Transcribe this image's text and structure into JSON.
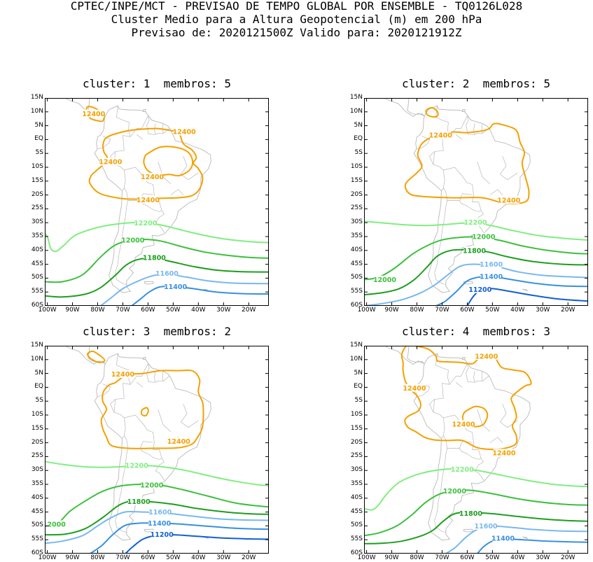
{
  "header": {
    "line1": "CPTEC/INPE/MCT - PREVISAO DE TEMPO GLOBAL POR ENSEMBLE - TQ0126L028",
    "line2": "Cluster Medio para a Altura Geopotencial (m) em 200 hPa",
    "line3": "Previsao de: 2020121500Z   Valido para: 2020121912Z"
  },
  "colors": {
    "c12400": "#f5a000",
    "c12200": "#80ee80",
    "c12000": "#3cc03c",
    "c11800": "#1e9e1e",
    "c11600": "#78b8f0",
    "c11400": "#3890e0",
    "c11200": "#1060d0",
    "land": "#b8b8b8"
  },
  "axes": {
    "lat_labels": [
      "15N",
      "10N",
      "5N",
      "EQ",
      "5S",
      "10S",
      "15S",
      "20S",
      "25S",
      "30S",
      "35S",
      "40S",
      "45S",
      "50S",
      "55S",
      "60S"
    ],
    "lon_labels": [
      "100W",
      "90W",
      "80W",
      "70W",
      "60W",
      "50W",
      "40W",
      "30W",
      "20W"
    ]
  },
  "panels": [
    {
      "title": "cluster: 1  membros: 5",
      "labels": [
        {
          "text": "12400",
          "lon": -81.6,
          "lat": 9.4,
          "color": "c12400"
        },
        {
          "text": "12400",
          "lon": -45.6,
          "lat": 2.9,
          "color": "c12400"
        },
        {
          "text": "12400",
          "lon": -74.9,
          "lat": -8.0,
          "color": "c12400"
        },
        {
          "text": "12400",
          "lon": -58.3,
          "lat": -13.4,
          "color": "c12400"
        },
        {
          "text": "12400",
          "lon": -60.0,
          "lat": -21.7,
          "color": "c12400"
        },
        {
          "text": "12200",
          "lon": -61.0,
          "lat": -30.0,
          "color": "c12200"
        },
        {
          "text": "12000",
          "lon": -66.0,
          "lat": -36.2,
          "color": "c12000"
        },
        {
          "text": "11800",
          "lon": -57.5,
          "lat": -42.6,
          "color": "c11800"
        },
        {
          "text": "11600",
          "lon": -52.5,
          "lat": -48.2,
          "color": "c11600"
        },
        {
          "text": "11400",
          "lon": -49.1,
          "lat": -53.0,
          "color": "c11400"
        }
      ]
    },
    {
      "title": "cluster: 2  membros: 5",
      "labels": [
        {
          "text": "12400",
          "lon": -70.6,
          "lat": 1.6,
          "color": "c12400"
        },
        {
          "text": "12400",
          "lon": -43.5,
          "lat": -21.8,
          "color": "c12400"
        },
        {
          "text": "12200",
          "lon": -56.8,
          "lat": -29.8,
          "color": "c12200"
        },
        {
          "text": "12000",
          "lon": -53.5,
          "lat": -35.0,
          "color": "c12000"
        },
        {
          "text": "11800",
          "lon": -57.2,
          "lat": -40.0,
          "color": "c11800"
        },
        {
          "text": "12000",
          "lon": -92.8,
          "lat": -50.5,
          "color": "c12000"
        },
        {
          "text": "11600",
          "lon": -50.5,
          "lat": -45.0,
          "color": "c11600"
        },
        {
          "text": "11400",
          "lon": -50.5,
          "lat": -49.4,
          "color": "c11400"
        },
        {
          "text": "11200",
          "lon": -54.9,
          "lat": -54.0,
          "color": "c11200"
        }
      ]
    },
    {
      "title": "cluster: 3  membros: 2",
      "labels": [
        {
          "text": "12400",
          "lon": -70.0,
          "lat": 4.8,
          "color": "c12400"
        },
        {
          "text": "12400",
          "lon": -47.8,
          "lat": -19.5,
          "color": "c12400"
        },
        {
          "text": "12200",
          "lon": -64.5,
          "lat": -28.2,
          "color": "c12200"
        },
        {
          "text": "12000",
          "lon": -97.3,
          "lat": -49.4,
          "color": "c12000"
        },
        {
          "text": "12000",
          "lon": -58.5,
          "lat": -35.2,
          "color": "c12000"
        },
        {
          "text": "11800",
          "lon": -63.7,
          "lat": -41.2,
          "color": "c11800"
        },
        {
          "text": "11600",
          "lon": -55.2,
          "lat": -45.0,
          "color": "c11600"
        },
        {
          "text": "11400",
          "lon": -55.5,
          "lat": -49.0,
          "color": "c11400"
        },
        {
          "text": "11200",
          "lon": -54.5,
          "lat": -53.0,
          "color": "c11200"
        }
      ]
    },
    {
      "title": "cluster: 4  membros: 3",
      "labels": [
        {
          "text": "12400",
          "lon": -52.4,
          "lat": 11.3,
          "color": "c12400"
        },
        {
          "text": "12400",
          "lon": -81.0,
          "lat": -0.2,
          "color": "c12400"
        },
        {
          "text": "12400",
          "lon": -61.5,
          "lat": -13.2,
          "color": "c12400"
        },
        {
          "text": "12400",
          "lon": -45.4,
          "lat": -23.6,
          "color": "c12400"
        },
        {
          "text": "12200",
          "lon": -62.0,
          "lat": -29.5,
          "color": "c12200"
        },
        {
          "text": "12000",
          "lon": -65.0,
          "lat": -37.4,
          "color": "c12000"
        },
        {
          "text": "11800",
          "lon": -58.6,
          "lat": -45.4,
          "color": "c11800"
        },
        {
          "text": "11600",
          "lon": -52.6,
          "lat": -50.0,
          "color": "c11600"
        },
        {
          "text": "11400",
          "lon": -45.8,
          "lat": -54.4,
          "color": "c11400"
        }
      ]
    }
  ]
}
